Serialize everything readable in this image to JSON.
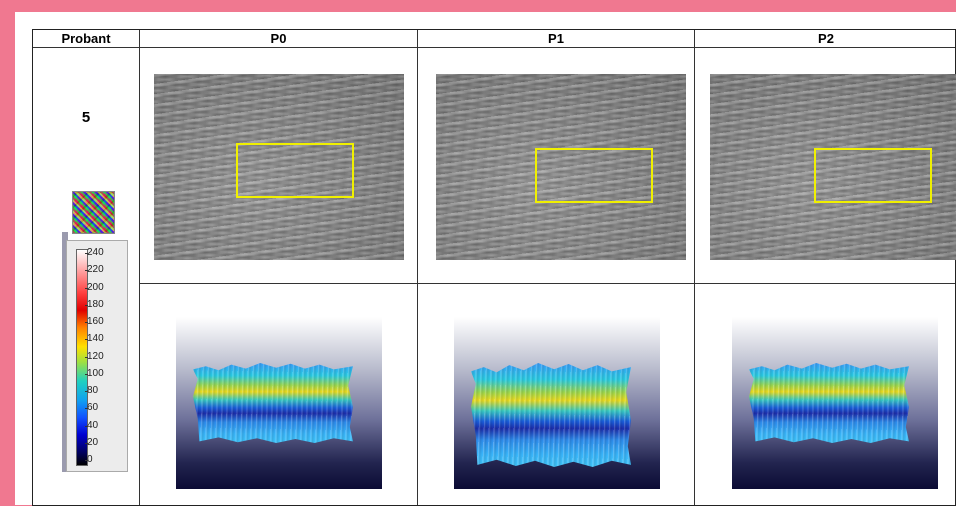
{
  "table": {
    "headers": [
      "Probant",
      "P0",
      "P1",
      "P2"
    ],
    "probant": "5"
  },
  "colorbar": {
    "ticks": [
      "240",
      "220",
      "200",
      "180",
      "160",
      "140",
      "120",
      "100",
      "80",
      "60",
      "40",
      "20",
      "0"
    ],
    "colors": {
      "high": "#ff0000",
      "mid": "#ffe000",
      "low": "#0000d0"
    }
  },
  "roi_color": "#f0f000"
}
